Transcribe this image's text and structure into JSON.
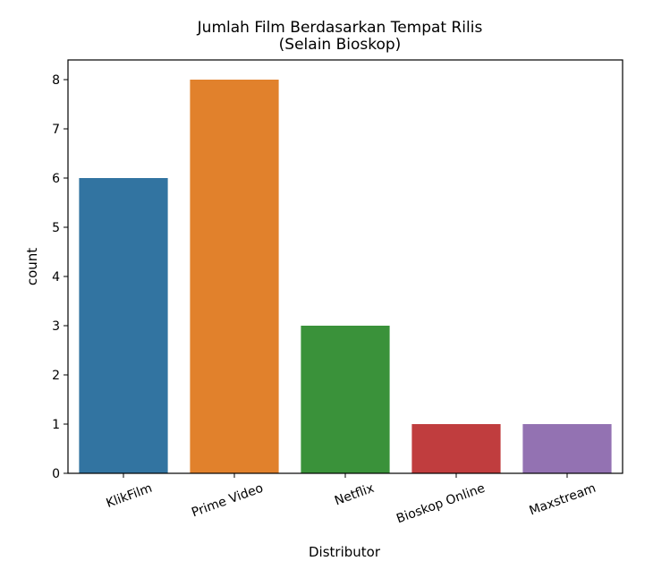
{
  "chart_data": {
    "type": "bar",
    "title_line1": "Jumlah Film Berdasarkan Tempat Rilis",
    "title_line2": "(Selain Bioskop)",
    "xlabel": "Distributor",
    "ylabel": "count",
    "categories": [
      "KlikFilm",
      "Prime Video",
      "Netflix",
      "Bioskop Online",
      "Maxstream"
    ],
    "values": [
      6,
      8,
      3,
      1,
      1
    ],
    "colors": [
      "#3274a1",
      "#e1812c",
      "#3a923a",
      "#c03d3e",
      "#9372b2"
    ],
    "ylim": [
      0,
      8.4
    ],
    "yticks": [
      0,
      1,
      2,
      3,
      4,
      5,
      6,
      7,
      8
    ],
    "grid": false,
    "legend": "none"
  }
}
